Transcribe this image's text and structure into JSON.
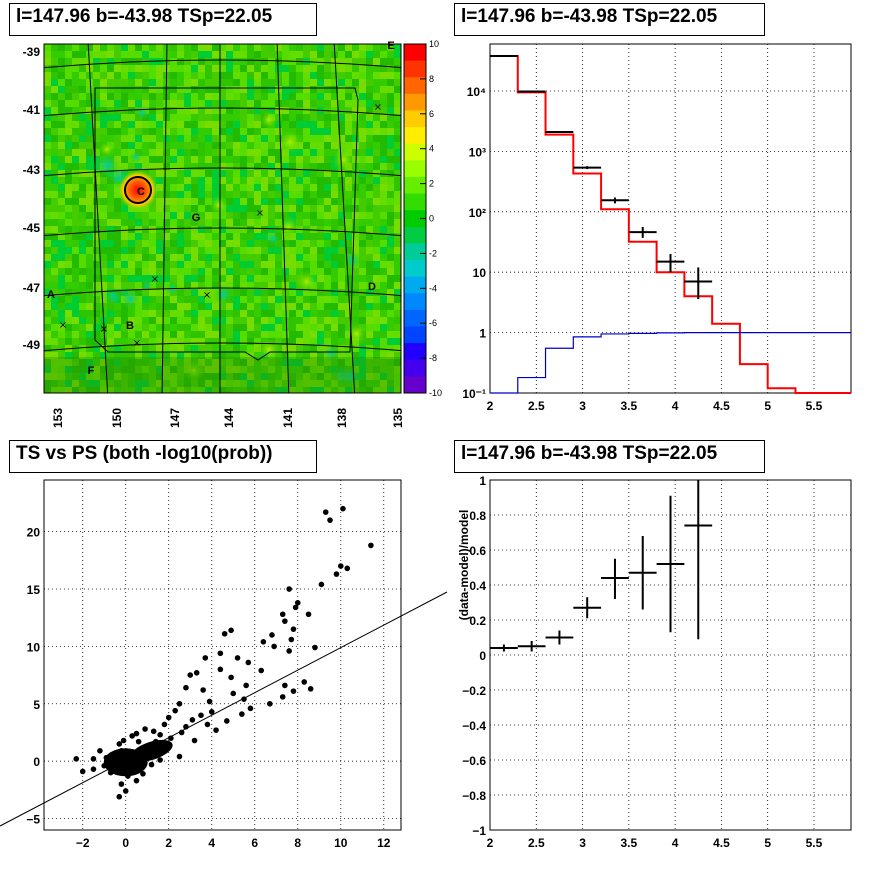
{
  "panels": {
    "map": {
      "title": "l=147.96 b=-43.98 TSp=22.05"
    },
    "spectrum": {
      "title": "l=147.96 b=-43.98 TSp=22.05"
    },
    "scatter": {
      "title": "TS vs PS (both -log10(prob))"
    },
    "residual": {
      "title": "l=147.96 b=-43.98 TSp=22.05"
    }
  },
  "chart_data": [
    {
      "type": "heatmap",
      "title": "l=147.96 b=-43.98 TSp=22.05",
      "x_ticks": [
        "153",
        "150",
        "147",
        "144",
        "141",
        "138",
        "135"
      ],
      "y_ticks": [
        "-39",
        "-41",
        "-43",
        "-45",
        "-47",
        "-49"
      ],
      "colorbar_ticks": [
        "10",
        "8",
        "6",
        "4",
        "2",
        "0",
        "-2",
        "-4",
        "-6",
        "-8",
        "-10"
      ],
      "zlim": [
        -10,
        10
      ],
      "source_labels": [
        "E",
        "C",
        "G",
        "A",
        "D",
        "B",
        "F"
      ],
      "colors": {
        "low": "#6600cc",
        "mid": "#00cc00",
        "high": "#ff0000",
        "marker": "#000000"
      }
    },
    {
      "type": "line",
      "title": "l=147.96 b=-43.98 TSp=22.05",
      "x_ticks": [
        "2",
        "2.5",
        "3",
        "3.5",
        "4",
        "4.5",
        "5",
        "5.5"
      ],
      "y_ticks": [
        "10⁻¹",
        "1",
        "10",
        "10²",
        "10³",
        "10⁴"
      ],
      "xlim": [
        2,
        5.9
      ],
      "ylim": [
        0.1,
        60000
      ],
      "log_y": true,
      "grid": true,
      "bin_edges": [
        2.0,
        2.3,
        2.6,
        2.9,
        3.2,
        3.5,
        3.8,
        4.1,
        4.4,
        4.7,
        5.0,
        5.3,
        5.6,
        5.9
      ],
      "series": [
        {
          "values": [
            38000,
            9500,
            1900,
            430,
            110,
            32,
            10,
            4,
            1.4,
            0.3,
            0.12,
            0.1,
            0.1
          ],
          "color": "#ff0000"
        },
        {
          "values": [
            0.08,
            0.18,
            0.55,
            0.85,
            0.95,
            0.97,
            0.99,
            1.0,
            1.0,
            1.0,
            1.0,
            1.0,
            1.0
          ],
          "color": "#0000cc"
        }
      ],
      "points": [
        {
          "x": 2.15,
          "y": 38000,
          "xerr": 0.15,
          "ylo": 37500,
          "yhi": 38500
        },
        {
          "x": 2.45,
          "y": 9800,
          "xerr": 0.15,
          "ylo": 9600,
          "yhi": 10000
        },
        {
          "x": 2.75,
          "y": 2100,
          "xerr": 0.15,
          "ylo": 2040,
          "yhi": 2160
        },
        {
          "x": 3.05,
          "y": 540,
          "xerr": 0.15,
          "ylo": 510,
          "yhi": 570
        },
        {
          "x": 3.35,
          "y": 155,
          "xerr": 0.15,
          "ylo": 138,
          "yhi": 172
        },
        {
          "x": 3.65,
          "y": 46,
          "xerr": 0.15,
          "ylo": 37,
          "yhi": 56
        },
        {
          "x": 3.95,
          "y": 15,
          "xerr": 0.15,
          "ylo": 10,
          "yhi": 20
        },
        {
          "x": 4.25,
          "y": 7,
          "xerr": 0.15,
          "ylo": 3.6,
          "yhi": 12
        }
      ]
    },
    {
      "type": "scatter",
      "title": "TS vs PS (both -log10(prob))",
      "x_ticks": [
        "−2",
        "0",
        "2",
        "4",
        "6",
        "8",
        "10",
        "12"
      ],
      "y_ticks": [
        "−5",
        "0",
        "5",
        "10",
        "15",
        "20"
      ],
      "xlim": [
        -3.8,
        12.8
      ],
      "ylim": [
        -6,
        24.5
      ],
      "grid": true,
      "line": {
        "x": [
          -3.8,
          12.8
        ],
        "y": [
          -5.9,
          14.0
        ]
      },
      "points": [
        [
          9.3,
          21.7
        ],
        [
          10.1,
          22.0
        ],
        [
          9.5,
          21.0
        ],
        [
          11.4,
          18.8
        ],
        [
          10.0,
          17.0
        ],
        [
          10.3,
          16.8
        ],
        [
          9.8,
          16.3
        ],
        [
          9.1,
          15.4
        ],
        [
          7.6,
          15.0
        ],
        [
          8.0,
          13.8
        ],
        [
          7.9,
          13.4
        ],
        [
          7.3,
          12.8
        ],
        [
          8.5,
          12.8
        ],
        [
          7.4,
          12.2
        ],
        [
          7.8,
          11.5
        ],
        [
          4.9,
          11.4
        ],
        [
          4.6,
          11.1
        ],
        [
          6.8,
          11.0
        ],
        [
          7.7,
          10.6
        ],
        [
          6.4,
          10.4
        ],
        [
          8.8,
          9.9
        ],
        [
          6.9,
          10.0
        ],
        [
          7.6,
          9.6
        ],
        [
          4.4,
          9.4
        ],
        [
          5.2,
          9.0
        ],
        [
          3.7,
          9.0
        ],
        [
          5.7,
          8.6
        ],
        [
          4.4,
          8.0
        ],
        [
          6.3,
          7.9
        ],
        [
          3.3,
          7.7
        ],
        [
          4.9,
          7.3
        ],
        [
          3.0,
          7.5
        ],
        [
          8.3,
          6.9
        ],
        [
          8.6,
          6.3
        ],
        [
          7.4,
          6.6
        ],
        [
          5.6,
          6.6
        ],
        [
          2.8,
          6.4
        ],
        [
          3.6,
          6.2
        ],
        [
          7.8,
          6.1
        ],
        [
          7.3,
          5.6
        ],
        [
          5.0,
          5.9
        ],
        [
          3.9,
          5.2
        ],
        [
          5.5,
          5.4
        ],
        [
          6.7,
          5.0
        ],
        [
          2.5,
          5.0
        ],
        [
          4.0,
          4.3
        ],
        [
          5.8,
          4.6
        ],
        [
          2.3,
          4.4
        ],
        [
          3.5,
          4.0
        ],
        [
          5.4,
          4.1
        ],
        [
          2.0,
          3.8
        ],
        [
          3.1,
          3.6
        ],
        [
          4.7,
          3.5
        ],
        [
          3.8,
          3.2
        ],
        [
          2.8,
          3.0
        ],
        [
          4.2,
          2.7
        ],
        [
          1.8,
          3.2
        ],
        [
          2.6,
          2.5
        ],
        [
          1.6,
          2.3
        ],
        [
          2.1,
          2.0
        ],
        [
          1.3,
          2.6
        ],
        [
          1.4,
          1.7
        ],
        [
          0.9,
          2.8
        ],
        [
          3.2,
          1.8
        ],
        [
          1.9,
          1.5
        ],
        [
          0.5,
          2.4
        ],
        [
          1.1,
          1.2
        ],
        [
          0.6,
          1.7
        ],
        [
          -0.3,
          1.5
        ],
        [
          0.3,
          0.8
        ],
        [
          -0.2,
          0.9
        ],
        [
          1.0,
          0.6
        ],
        [
          0.1,
          0.3
        ],
        [
          -0.5,
          0.5
        ],
        [
          0.7,
          0.2
        ],
        [
          -0.9,
          0.3
        ],
        [
          -1.5,
          0.2
        ],
        [
          -2.3,
          0.2
        ],
        [
          -1.0,
          -0.4
        ],
        [
          -0.4,
          -0.3
        ],
        [
          0.4,
          -0.6
        ],
        [
          -0.7,
          -1.0
        ],
        [
          0.1,
          -1.3
        ],
        [
          0.5,
          -1.7
        ],
        [
          -0.2,
          -2.0
        ],
        [
          0.0,
          -2.6
        ],
        [
          -0.3,
          -3.1
        ],
        [
          -2.0,
          -0.9
        ],
        [
          -1.5,
          -0.7
        ],
        [
          1.6,
          0.1
        ],
        [
          2.5,
          0.4
        ],
        [
          1.2,
          -0.3
        ],
        [
          0.8,
          -1.1
        ],
        [
          -1.2,
          0.9
        ],
        [
          -0.1,
          1.8
        ],
        [
          0.3,
          2.2
        ]
      ],
      "colors": {
        "points": "#000000",
        "line": "#000000"
      }
    },
    {
      "type": "scatter",
      "title": "l=147.96 b=-43.98 TSp=22.05",
      "ylabel": "(data-model)/model",
      "x_ticks": [
        "2",
        "2.5",
        "3",
        "3.5",
        "4",
        "4.5",
        "5",
        "5.5"
      ],
      "y_ticks": [
        "−1",
        "−0.8",
        "−0.6",
        "−0.4",
        "−0.2",
        "0",
        "0.2",
        "0.4",
        "0.6",
        "0.8",
        "1"
      ],
      "xlim": [
        2,
        5.9
      ],
      "ylim": [
        -1,
        1
      ],
      "grid": true,
      "points": [
        {
          "x": 2.15,
          "y": 0.04,
          "xerr": 0.15,
          "ylo": 0.02,
          "yhi": 0.06
        },
        {
          "x": 2.45,
          "y": 0.05,
          "xerr": 0.15,
          "ylo": 0.02,
          "yhi": 0.08
        },
        {
          "x": 2.75,
          "y": 0.1,
          "xerr": 0.15,
          "ylo": 0.06,
          "yhi": 0.14
        },
        {
          "x": 3.05,
          "y": 0.27,
          "xerr": 0.15,
          "ylo": 0.21,
          "yhi": 0.33
        },
        {
          "x": 3.35,
          "y": 0.44,
          "xerr": 0.15,
          "ylo": 0.32,
          "yhi": 0.55
        },
        {
          "x": 3.65,
          "y": 0.47,
          "xerr": 0.15,
          "ylo": 0.26,
          "yhi": 0.68
        },
        {
          "x": 3.95,
          "y": 0.52,
          "xerr": 0.15,
          "ylo": 0.13,
          "yhi": 0.91
        },
        {
          "x": 4.25,
          "y": 0.74,
          "xerr": 0.15,
          "ylo": 0.09,
          "yhi": 1.0
        }
      ]
    }
  ]
}
